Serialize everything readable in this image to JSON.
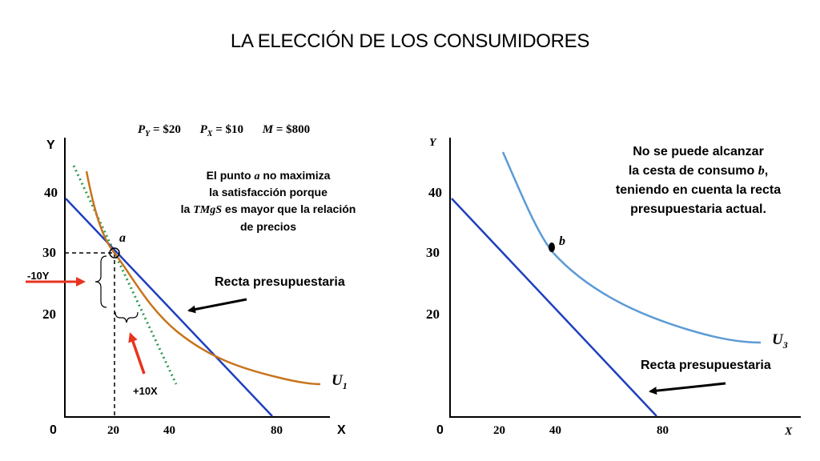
{
  "title": "LA ELECCIÓN DE LOS CONSUMIDORES",
  "colors": {
    "budget_line": "#1f3fbf",
    "curve_u1": "#c8741c",
    "curve_u3": "#5b9bd5",
    "mrs_tangent": "#2e9a4e",
    "arrow_red": "#e8331f",
    "axis": "#000000"
  },
  "left_panel": {
    "prices": {
      "py_label": "P",
      "py_sub": "Y",
      "py_value": " = $20",
      "px_label": "P",
      "px_sub": "X",
      "px_value": " = $10",
      "m_label": "M",
      "m_value": " = $800"
    },
    "axis_y_label": "Y",
    "axis_x_label": "X",
    "origin_label": "0",
    "y_ticks": [
      "40",
      "30",
      "20"
    ],
    "x_ticks": [
      "20",
      "40",
      "80"
    ],
    "point_label": "a",
    "note_line1_a": "El punto ",
    "note_line1_b": "a",
    "note_line1_c": " no maximiza",
    "note_line2": "la satisfacción porque",
    "note_line3_a": "la ",
    "note_line3_b": "TMgS",
    "note_line3_c": " es mayor que la relación",
    "note_line4": "de precios",
    "budget_label": "Recta presupuestaria",
    "curve_label": "U",
    "curve_sub": "1",
    "minus_y_label": "-10Y",
    "plus_x_label": "+10X"
  },
  "right_panel": {
    "axis_y_label": "Y",
    "axis_x_label": "X",
    "origin_label": "0",
    "y_ticks": [
      "40",
      "30",
      "20"
    ],
    "x_ticks": [
      "20",
      "40",
      "80"
    ],
    "point_label": "b",
    "note_line1": "No se puede alcanzar",
    "note_line2_a": "la cesta de consumo ",
    "note_line2_b": "b",
    "note_line2_c": ",",
    "note_line3": "teniendo en cuenta la recta",
    "note_line4": "presupuestaria actual.",
    "budget_label": "Recta presupuestaria",
    "curve_label": "U",
    "curve_sub": "3"
  }
}
